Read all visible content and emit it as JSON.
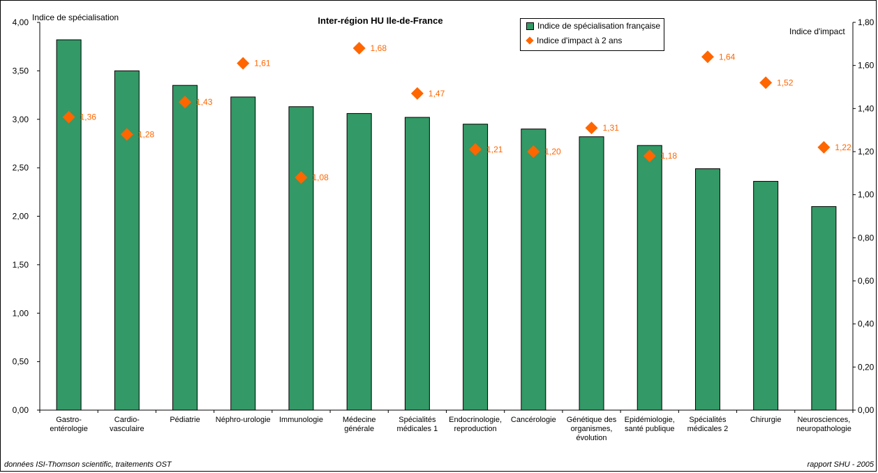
{
  "chart_data": {
    "type": "bar",
    "title": "Inter-région HU Ile-de-France",
    "ylabel": "Indice de spécialisation",
    "y2label": "Indice d'impact",
    "ylim": [
      0,
      4
    ],
    "y2lim": [
      0,
      1.8
    ],
    "yticks": [
      "0,00",
      "0,50",
      "1,00",
      "1,50",
      "2,00",
      "2,50",
      "3,00",
      "3,50",
      "4,00"
    ],
    "y2ticks": [
      "0,00",
      "0,20",
      "0,40",
      "0,60",
      "0,80",
      "1,00",
      "1,20",
      "1,40",
      "1,60",
      "1,80"
    ],
    "categories": [
      [
        "Gastro-",
        "entérologie"
      ],
      [
        "Cardio-",
        "vasculaire"
      ],
      [
        "Pédiatrie"
      ],
      [
        "Néphro-urologie"
      ],
      [
        "Immunologie"
      ],
      [
        "Médecine",
        "générale"
      ],
      [
        "Spécialités",
        "médicales 1"
      ],
      [
        "Endocrinologie,",
        "reproduction"
      ],
      [
        "Cancérologie"
      ],
      [
        "Génétique des",
        "organismes,",
        "évolution"
      ],
      [
        "Epidémiologie,",
        "santé publique"
      ],
      [
        "Spécialités",
        "médicales 2"
      ],
      [
        "Chirurgie"
      ],
      [
        "Neurosciences,",
        "neuropathologie"
      ]
    ],
    "series": [
      {
        "name": "Indice de spécialisation française",
        "type": "bar",
        "axis": "left",
        "color": "#339966",
        "values": [
          3.82,
          3.5,
          3.35,
          3.23,
          3.13,
          3.06,
          3.02,
          2.95,
          2.9,
          2.82,
          2.73,
          2.49,
          2.36,
          2.1
        ]
      },
      {
        "name": "Indice d'impact à 2 ans",
        "type": "scatter",
        "axis": "right",
        "color": "#FF6600",
        "values": [
          1.36,
          1.28,
          1.43,
          1.61,
          1.08,
          1.68,
          1.47,
          1.21,
          1.2,
          1.31,
          1.18,
          1.64,
          1.52,
          1.22
        ],
        "labels": [
          "1,36",
          "1,28",
          "1,43",
          "1,61",
          "1,08",
          "1,68",
          "1,47",
          "1,21",
          "1,20",
          "1,31",
          "1,18",
          "1,64",
          "1,52",
          "1,22"
        ]
      }
    ],
    "legend_position": "top-center",
    "grid": false
  },
  "footer": {
    "source": "données ISI-Thomson scientific, traitements OST",
    "report": "rapport SHU - 2005"
  },
  "colors": {
    "bar": "#339966",
    "marker": "#FF6600",
    "label": "#FF6600"
  }
}
